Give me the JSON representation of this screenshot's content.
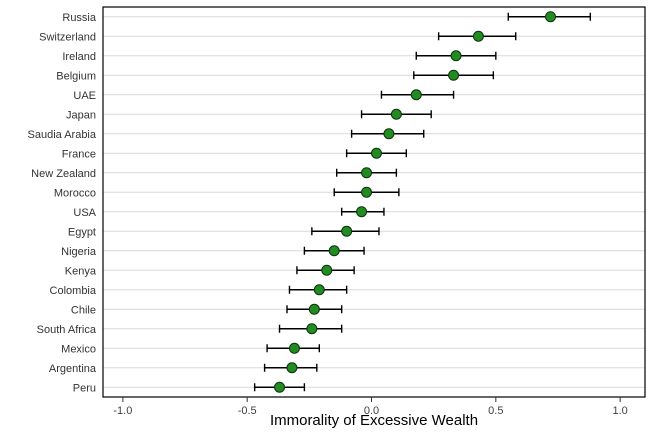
{
  "chart_data": {
    "type": "scatter",
    "variant": "horizontal-dot-plot-with-error-bars",
    "title": "",
    "xlabel": "Immorality of Excessive Wealth",
    "ylabel": "",
    "xlim": [
      -1.08,
      1.1
    ],
    "x_ticks": [
      -1.0,
      -0.5,
      0.0,
      0.5,
      1.0
    ],
    "x_tick_labels": [
      "-1.0",
      "-0.5",
      "0.0",
      "0.5",
      "1.0"
    ],
    "grid": "horizontal-only",
    "legend": "none",
    "categories": [
      "Russia",
      "Switzerland",
      "Ireland",
      "Belgium",
      "UAE",
      "Japan",
      "Saudia Arabia",
      "France",
      "New Zealand",
      "Morocco",
      "USA",
      "Egypt",
      "Nigeria",
      "Kenya",
      "Colombia",
      "Chile",
      "South Africa",
      "Mexico",
      "Argentina",
      "Peru"
    ],
    "values": [
      0.72,
      0.43,
      0.34,
      0.33,
      0.18,
      0.1,
      0.07,
      0.02,
      -0.02,
      -0.02,
      -0.04,
      -0.1,
      -0.15,
      -0.18,
      -0.21,
      -0.23,
      -0.24,
      -0.31,
      -0.32,
      -0.37
    ],
    "ci_low": [
      0.55,
      0.27,
      0.18,
      0.17,
      0.04,
      -0.04,
      -0.08,
      -0.1,
      -0.14,
      -0.15,
      -0.12,
      -0.24,
      -0.27,
      -0.3,
      -0.33,
      -0.34,
      -0.37,
      -0.42,
      -0.43,
      -0.47
    ],
    "ci_high": [
      0.88,
      0.58,
      0.5,
      0.49,
      0.33,
      0.24,
      0.21,
      0.14,
      0.1,
      0.11,
      0.05,
      0.03,
      -0.03,
      -0.07,
      -0.1,
      -0.12,
      -0.12,
      -0.21,
      -0.22,
      -0.27
    ],
    "colors": {
      "point_fill": "#228B22",
      "point_stroke": "#0c330c",
      "error_bar": "#000000",
      "gridline": "#d9d9d9",
      "border": "#000000",
      "tick_text": "#404040",
      "category_text": "#333333"
    }
  }
}
